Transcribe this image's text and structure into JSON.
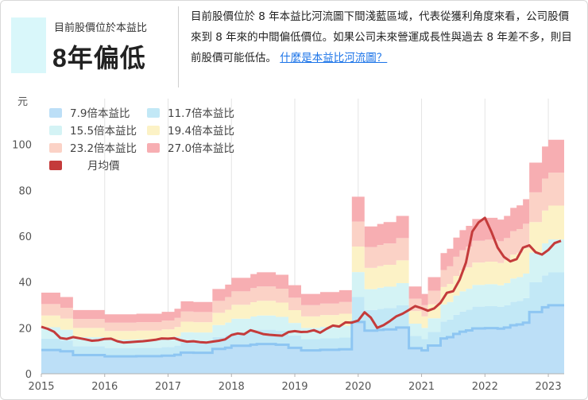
{
  "header": {
    "status_caption": "目前股價位於本益比",
    "status_value": "8年偏低",
    "description": "目前股價位於 8 年本益比河流圖下間淺藍區域，代表從獲利角度來看，公司股價來到 8 年來的中間偏低價位。如果公司未來營運成長性與過去 8 年差不多，則目前股價可能低估。",
    "link_text": "什麼是本益比河流圖？"
  },
  "chart_data": {
    "type": "area",
    "y_unit_label": "元",
    "ylim": [
      0,
      120
    ],
    "y_ticks": [
      "0",
      "20",
      "40",
      "60",
      "80",
      "100"
    ],
    "x_ticks": [
      "2015",
      "2016",
      "2017",
      "2018",
      "2019",
      "2020",
      "2021",
      "2022",
      "2023"
    ],
    "grid": "vertical",
    "legend_placement": "top-left",
    "colors": {
      "band1": "#bcdff7",
      "band1_line": "#8ec6f2",
      "band2": "#c2e8f6",
      "band3": "#d4f3f5",
      "band4": "#fcf2c6",
      "band5": "#fbd2c6",
      "band6": "#f7aeb2",
      "price": "#c43b3b"
    },
    "x": [
      2015.0,
      2015.1,
      2015.2,
      2015.3,
      2015.4,
      2015.5,
      2015.6,
      2015.7,
      2015.8,
      2015.9,
      2016.0,
      2016.1,
      2016.2,
      2016.3,
      2016.4,
      2016.5,
      2016.6,
      2016.7,
      2016.8,
      2016.9,
      2017.0,
      2017.1,
      2017.2,
      2017.3,
      2017.4,
      2017.5,
      2017.6,
      2017.7,
      2017.8,
      2017.9,
      2018.0,
      2018.1,
      2018.2,
      2018.3,
      2018.4,
      2018.5,
      2018.6,
      2018.7,
      2018.8,
      2018.9,
      2019.0,
      2019.1,
      2019.2,
      2019.3,
      2019.4,
      2019.5,
      2019.6,
      2019.7,
      2019.8,
      2019.9,
      2020.0,
      2020.1,
      2020.2,
      2020.3,
      2020.4,
      2020.5,
      2020.6,
      2020.7,
      2020.8,
      2020.9,
      2021.0,
      2021.1,
      2021.2,
      2021.3,
      2021.4,
      2021.5,
      2021.6,
      2021.7,
      2021.8,
      2021.9,
      2022.0,
      2022.1,
      2022.2,
      2022.3,
      2022.4,
      2022.5,
      2022.6,
      2022.7,
      2022.8,
      2022.9,
      2023.0,
      2023.1,
      2023.2
    ],
    "eps": [
      1.31,
      1.31,
      1.31,
      1.24,
      1.24,
      1.03,
      1.03,
      1.03,
      1.03,
      1.03,
      0.96,
      0.96,
      0.96,
      0.96,
      0.96,
      0.97,
      0.97,
      0.97,
      0.97,
      1.0,
      1.0,
      1.05,
      1.17,
      1.17,
      1.16,
      1.16,
      1.16,
      1.37,
      1.37,
      1.44,
      1.55,
      1.55,
      1.55,
      1.61,
      1.64,
      1.64,
      1.64,
      1.6,
      1.6,
      1.43,
      1.43,
      1.29,
      1.29,
      1.29,
      1.32,
      1.32,
      1.32,
      1.35,
      1.35,
      2.86,
      2.86,
      2.38,
      2.38,
      2.42,
      2.45,
      2.45,
      2.55,
      2.55,
      1.41,
      1.41,
      1.29,
      1.56,
      1.56,
      1.95,
      2.02,
      2.2,
      2.32,
      2.39,
      2.5,
      2.5,
      2.52,
      2.52,
      2.49,
      2.55,
      2.68,
      2.72,
      2.82,
      3.41,
      3.41,
      3.67,
      3.78,
      3.78,
      3.78
    ],
    "multiples": [
      7.9,
      11.7,
      15.5,
      19.4,
      23.2,
      27.0
    ],
    "series": [
      {
        "name": "7.9倍本益比",
        "type": "band"
      },
      {
        "name": "11.7倍本益比",
        "type": "band"
      },
      {
        "name": "15.5倍本益比",
        "type": "band"
      },
      {
        "name": "19.4倍本益比",
        "type": "band"
      },
      {
        "name": "23.2倍本益比",
        "type": "band"
      },
      {
        "name": "27.0倍本益比",
        "type": "band"
      },
      {
        "name": "月均價",
        "type": "line",
        "values": [
          20.5,
          19.6,
          18.3,
          15.6,
          15.2,
          16.0,
          15.5,
          15.0,
          14.4,
          14.6,
          15.2,
          15.3,
          14.2,
          13.6,
          13.8,
          14.0,
          14.2,
          14.5,
          14.8,
          15.4,
          15.3,
          15.5,
          14.6,
          14.0,
          14.2,
          13.8,
          13.6,
          14.0,
          14.4,
          15.0,
          16.9,
          17.6,
          17.2,
          19.0,
          18.2,
          17.3,
          17.0,
          16.8,
          16.6,
          18.2,
          18.6,
          18.2,
          18.3,
          19.0,
          17.9,
          19.6,
          21.0,
          20.6,
          22.4,
          22.3,
          23.2,
          26.8,
          24.5,
          20.0,
          21.2,
          23.0,
          25.0,
          26.2,
          27.8,
          29.5,
          28.6,
          27.5,
          28.5,
          31.0,
          35.3,
          36.0,
          41.0,
          48.5,
          62.0,
          66.0,
          68.0,
          62.0,
          55.0,
          51.0,
          49.0,
          50.0,
          55.0,
          56.0,
          53.0,
          52.0,
          54.0,
          57.0,
          58.0
        ]
      }
    ]
  }
}
